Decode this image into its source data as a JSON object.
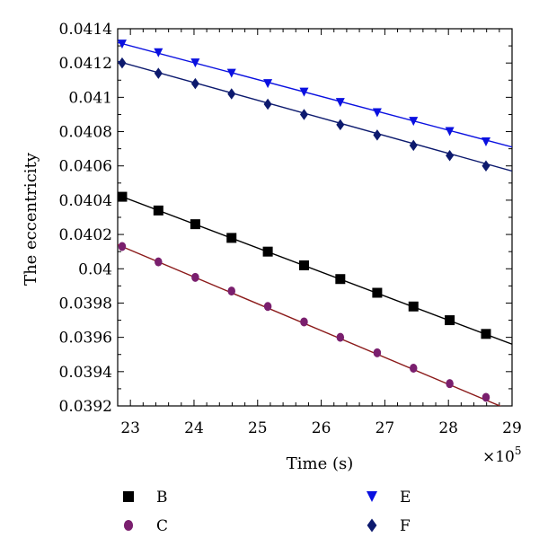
{
  "chart_data": {
    "type": "scatter",
    "xlabel": "Time (s)",
    "ylabel": "The eccentricity",
    "x_multiplier": "×10",
    "x_multiplier_exp": "5",
    "xlim": [
      22.8,
      29
    ],
    "ylim": [
      0.0392,
      0.0414
    ],
    "x_ticks": [
      23,
      24,
      25,
      26,
      27,
      28,
      29
    ],
    "x_tick_labels": [
      "23",
      "24",
      "25",
      "26",
      "27",
      "28",
      "29"
    ],
    "y_ticks": [
      0.0392,
      0.0394,
      0.0396,
      0.0398,
      0.04,
      0.0402,
      0.0404,
      0.0406,
      0.0408,
      0.041,
      0.0412,
      0.0414
    ],
    "y_tick_labels": [
      "0.0392",
      "0.0394",
      "0.0396",
      "0.0398",
      "0.04",
      "0.0402",
      "0.0404",
      "0.0406",
      "0.0408",
      "0.041",
      "0.0412",
      "0.0414"
    ],
    "grid": false,
    "legend_position": "bottom",
    "series": [
      {
        "name": "B",
        "marker": "square",
        "color": "#000000",
        "x": [
          22.87,
          23.44,
          24.02,
          24.59,
          25.16,
          25.73,
          26.3,
          26.88,
          27.45,
          28.02,
          28.59
        ],
        "y": [
          0.04042,
          0.04034,
          0.04026,
          0.04018,
          0.0401,
          0.04002,
          0.03994,
          0.03986,
          0.03978,
          0.0397,
          0.03962
        ],
        "fit": [
          [
            22.8,
            0.04043
          ],
          [
            29,
            0.03956
          ]
        ]
      },
      {
        "name": "C",
        "marker": "circle",
        "color": "#7a1f6e",
        "line_color": "#8b1a1a",
        "x": [
          22.87,
          23.44,
          24.02,
          24.59,
          25.16,
          25.73,
          26.3,
          26.88,
          27.45,
          28.02,
          28.59
        ],
        "y": [
          0.04013,
          0.04004,
          0.03995,
          0.03987,
          0.03978,
          0.03969,
          0.0396,
          0.03951,
          0.03942,
          0.03933,
          0.03925
        ],
        "fit": [
          [
            22.8,
            0.04014
          ],
          [
            29,
            0.03917
          ]
        ]
      },
      {
        "name": "E",
        "marker": "triangle-down",
        "color": "#0a10e0",
        "x": [
          22.87,
          23.44,
          24.02,
          24.59,
          25.16,
          25.73,
          26.3,
          26.88,
          27.45,
          28.02,
          28.59
        ],
        "y": [
          0.04131,
          0.04126,
          0.0412,
          0.04114,
          0.04108,
          0.04103,
          0.04097,
          0.04091,
          0.04086,
          0.0408,
          0.04074
        ],
        "fit": [
          [
            22.8,
            0.04132
          ],
          [
            29,
            0.04071
          ]
        ]
      },
      {
        "name": "F",
        "marker": "diamond",
        "color": "#0d1a6e",
        "x": [
          22.87,
          23.44,
          24.02,
          24.59,
          25.16,
          25.73,
          26.3,
          26.88,
          27.45,
          28.02,
          28.59
        ],
        "y": [
          0.0412,
          0.04114,
          0.04108,
          0.04102,
          0.04096,
          0.0409,
          0.04084,
          0.04078,
          0.04072,
          0.04066,
          0.0406
        ],
        "fit": [
          [
            22.8,
            0.04121
          ],
          [
            29,
            0.04057
          ]
        ]
      }
    ]
  }
}
